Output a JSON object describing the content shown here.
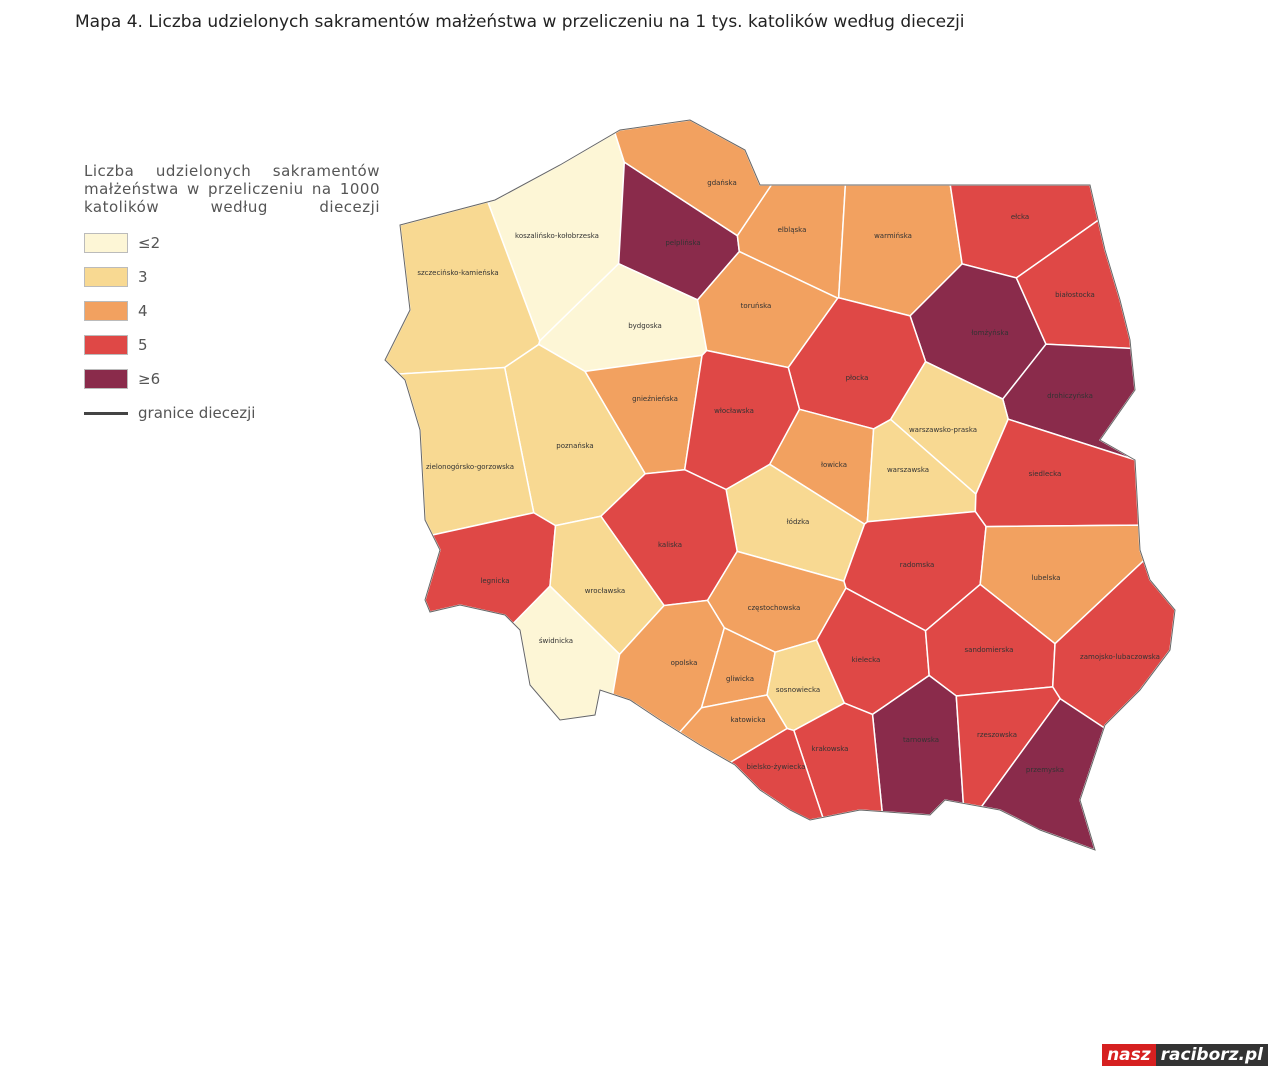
{
  "title": "Mapa 4. Liczba udzielonych sakramentów małżeństwa w przeliczeniu na 1 tys. katolików według diecezji",
  "legend": {
    "title": "Liczba udzielonych sakramentów małżeństwa w przeliczeniu na 1000 katolików według diecezji",
    "items": [
      {
        "label": "≤2",
        "color": "#fdf6d6"
      },
      {
        "label": "3",
        "color": "#f8d992"
      },
      {
        "label": "4",
        "color": "#f2a160"
      },
      {
        "label": "5",
        "color": "#df4846"
      },
      {
        "label": "≥6",
        "color": "#8a2b4b"
      }
    ],
    "border_label": "granice diecezji"
  },
  "dioceses": [
    {
      "label": "koszalińsko-kołobrzeska",
      "class": "≤2"
    },
    {
      "label": "pelplińska",
      "class": "≥6"
    },
    {
      "label": "gdańska",
      "class": "4"
    },
    {
      "label": "elbląska",
      "class": "4"
    },
    {
      "label": "warmińska",
      "class": "4"
    },
    {
      "label": "ełcka",
      "class": "5"
    },
    {
      "label": "szczecińsko-kamieńska",
      "class": "3"
    },
    {
      "label": "bydgoska",
      "class": "≤2"
    },
    {
      "label": "toruńska",
      "class": "4"
    },
    {
      "label": "łomżyńska",
      "class": "≥6"
    },
    {
      "label": "białostocka",
      "class": "5"
    },
    {
      "label": "gnieźnieńska",
      "class": "4"
    },
    {
      "label": "płocka",
      "class": "5"
    },
    {
      "label": "drohiczyńska",
      "class": "≥6"
    },
    {
      "label": "włocławska",
      "class": "5"
    },
    {
      "label": "poznańska",
      "class": "3"
    },
    {
      "label": "zielonogórsko-gorzowska",
      "class": "3"
    },
    {
      "label": "warszawsko-praska",
      "class": "3"
    },
    {
      "label": "łowicka",
      "class": "4"
    },
    {
      "label": "warszawska",
      "class": "3"
    },
    {
      "label": "siedlecka",
      "class": "5"
    },
    {
      "label": "łódzka",
      "class": "3"
    },
    {
      "label": "kaliska",
      "class": "5"
    },
    {
      "label": "legnicka",
      "class": "5"
    },
    {
      "label": "wrocławska",
      "class": "3"
    },
    {
      "label": "radomska",
      "class": "5"
    },
    {
      "label": "lubelska",
      "class": "4"
    },
    {
      "label": "częstochowska",
      "class": "4"
    },
    {
      "label": "świdnicka",
      "class": "≤2"
    },
    {
      "label": "opolska",
      "class": "4"
    },
    {
      "label": "gliwicka",
      "class": "4"
    },
    {
      "label": "sosnowiecka",
      "class": "3"
    },
    {
      "label": "kielecka",
      "class": "5"
    },
    {
      "label": "sandomierska",
      "class": "5"
    },
    {
      "label": "zamojsko-lubaczowska",
      "class": "5"
    },
    {
      "label": "katowicka",
      "class": "4"
    },
    {
      "label": "tarnowska",
      "class": "≥6"
    },
    {
      "label": "rzeszowska",
      "class": "5"
    },
    {
      "label": "krakowska",
      "class": "5"
    },
    {
      "label": "bielsko-żywiecka",
      "class": "5"
    },
    {
      "label": "przemyska",
      "class": "≥6"
    }
  ],
  "watermark": {
    "brand": "nasz",
    "site": "raciborz.pl"
  }
}
